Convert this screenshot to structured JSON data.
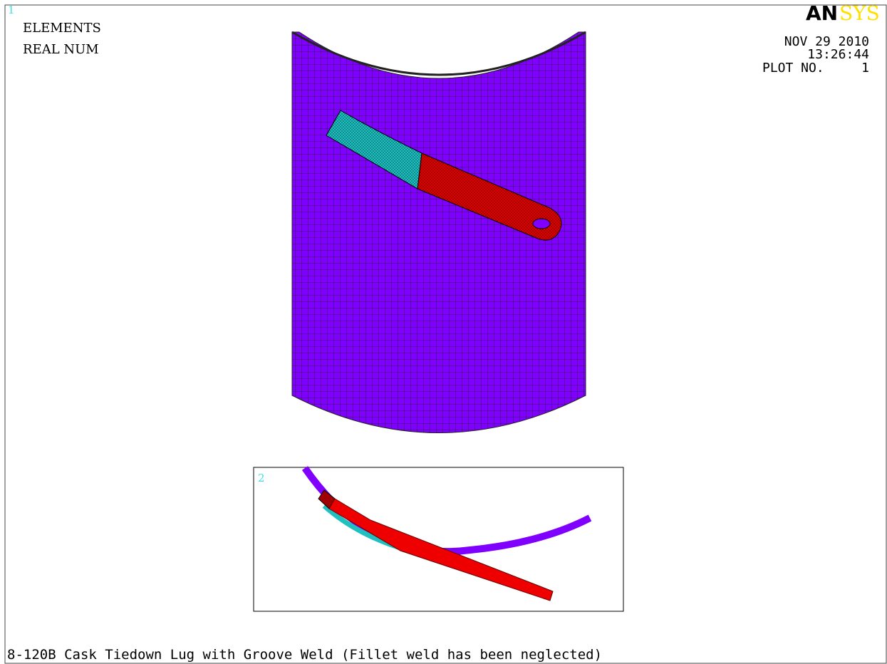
{
  "window_number": "1",
  "labels": [
    "ELEMENTS",
    "REAL NUM"
  ],
  "logo": {
    "left": "AN",
    "right": "SYS"
  },
  "date": "NOV 29 2010",
  "time": "13:26:44",
  "plot_label": "PLOT NO.",
  "plot_number": "1",
  "inset_window_number": "2",
  "caption": "8-120B Cask Tiedown Lug with Groove Weld (Fillet weld has been neglected)"
}
